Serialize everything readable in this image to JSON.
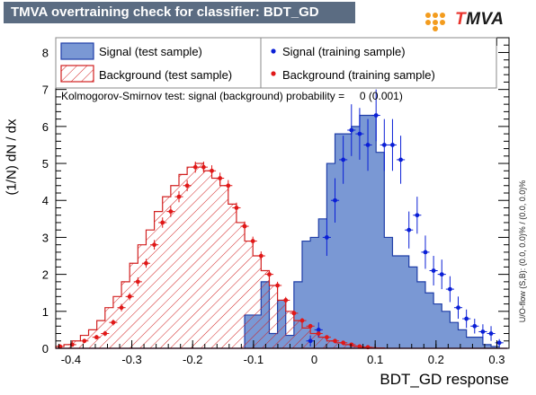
{
  "title": "TMVA overtraining check for classifier: BDT_GD",
  "logo": {
    "prefix": "T",
    "rest": "MVA",
    "accent_color": "#e8322b",
    "dot_color": "#f39c1e"
  },
  "side_note": "U/O-flow (S,B): (0.0, 0.0)% / (0.0, 0.0)%",
  "colors": {
    "signal_fill": "#7a98d4",
    "signal_line": "#1f3ea8",
    "signal_marker": "#0a1fd6",
    "background_line": "#d22020",
    "background_marker": "#e01818"
  },
  "chart_data": {
    "type": "histogram",
    "title": "TMVA overtraining check for classifier: BDT_GD",
    "xlabel": "BDT_GD response",
    "ylabel": "(1/N) dN / dx",
    "xlim": [
      -0.425,
      0.32
    ],
    "ylim": [
      0,
      8.4
    ],
    "grid": false,
    "x_ticks": [
      -0.4,
      -0.3,
      -0.2,
      -0.1,
      0,
      0.1,
      0.2,
      0.3
    ],
    "x_tick_labels": [
      "-0.4",
      "-0.3",
      "-0.2",
      "-0.1",
      "0",
      "0.1",
      "0.2",
      "0.3"
    ],
    "y_ticks": [
      0,
      1,
      2,
      3,
      4,
      5,
      6,
      7,
      8
    ],
    "y_tick_labels": [
      "0",
      "1",
      "2",
      "3",
      "4",
      "5",
      "6",
      "7",
      "8"
    ],
    "annotation": "Kolmogorov-Smirnov test: signal (background) probability =     0 (0.001)",
    "legend": {
      "placement": "top",
      "entries": [
        {
          "label": "Signal (test sample)",
          "style": "filled-box"
        },
        {
          "label": "Background (test sample)",
          "style": "hatched-box"
        },
        {
          "label": "Signal (training sample)",
          "style": "marker-signal"
        },
        {
          "label": "Background (training sample)",
          "style": "marker-background"
        }
      ]
    },
    "bin_edges": [
      -0.425,
      -0.4115,
      -0.398,
      -0.3845,
      -0.371,
      -0.3575,
      -0.344,
      -0.3305,
      -0.317,
      -0.3035,
      -0.29,
      -0.2765,
      -0.263,
      -0.2495,
      -0.236,
      -0.2225,
      -0.209,
      -0.1955,
      -0.182,
      -0.1685,
      -0.155,
      -0.1415,
      -0.128,
      -0.1145,
      -0.101,
      -0.0875,
      -0.074,
      -0.0605,
      -0.047,
      -0.0335,
      -0.02,
      -0.0065,
      0.007,
      0.0205,
      0.034,
      0.0475,
      0.061,
      0.0745,
      0.088,
      0.1015,
      0.115,
      0.1285,
      0.142,
      0.1555,
      0.169,
      0.1825,
      0.196,
      0.2095,
      0.223,
      0.2365,
      0.25,
      0.2635,
      0.277,
      0.2905,
      0.304,
      0.3175
    ],
    "series": [
      {
        "name": "Signal (test sample)",
        "values": [
          0,
          0,
          0,
          0,
          0,
          0,
          0,
          0,
          0,
          0,
          0,
          0,
          0,
          0,
          0,
          0,
          0,
          0,
          0,
          0,
          0,
          0,
          0,
          0.9,
          0.9,
          1.8,
          0.4,
          1.3,
          0.35,
          1.8,
          2.9,
          3.0,
          3.5,
          5.0,
          5.8,
          5.8,
          6.0,
          6.3,
          6.3,
          5.3,
          3.0,
          2.5,
          2.5,
          2.2,
          1.8,
          1.5,
          1.2,
          1.0,
          0.7,
          0.5,
          0.3,
          0.3,
          0.1,
          0.05,
          0.0
        ]
      },
      {
        "name": "Background (test sample)",
        "values": [
          0.05,
          0.1,
          0.2,
          0.35,
          0.5,
          0.75,
          1.1,
          1.4,
          1.8,
          2.3,
          2.8,
          3.2,
          3.7,
          4.1,
          4.4,
          4.7,
          4.9,
          5.0,
          4.8,
          4.6,
          4.4,
          3.9,
          3.4,
          2.9,
          2.5,
          2.1,
          1.7,
          1.3,
          1.0,
          0.75,
          0.55,
          0.4,
          0.3,
          0.2,
          0.15,
          0.1,
          0.06,
          0.03,
          0.02,
          0.01,
          0,
          0,
          0,
          0,
          0,
          0,
          0,
          0,
          0,
          0,
          0,
          0,
          0,
          0,
          0
        ]
      },
      {
        "name": "Signal (training sample)",
        "points": [
          {
            "x": -0.0065,
            "y": 0.2,
            "err": 0.15
          },
          {
            "x": 0.007,
            "y": 0.5,
            "err": 0.2
          },
          {
            "x": 0.0205,
            "y": 3.0,
            "err": 0.5
          },
          {
            "x": 0.034,
            "y": 4.0,
            "err": 0.6
          },
          {
            "x": 0.0475,
            "y": 5.1,
            "err": 0.65
          },
          {
            "x": 0.061,
            "y": 5.9,
            "err": 0.7
          },
          {
            "x": 0.0745,
            "y": 5.8,
            "err": 0.7
          },
          {
            "x": 0.088,
            "y": 5.5,
            "err": 0.7
          },
          {
            "x": 0.1015,
            "y": 6.3,
            "err": 0.7
          },
          {
            "x": 0.115,
            "y": 5.5,
            "err": 0.7
          },
          {
            "x": 0.1285,
            "y": 5.5,
            "err": 0.7
          },
          {
            "x": 0.142,
            "y": 5.1,
            "err": 0.65
          },
          {
            "x": 0.1555,
            "y": 3.2,
            "err": 0.5
          },
          {
            "x": 0.169,
            "y": 3.6,
            "err": 0.5
          },
          {
            "x": 0.1825,
            "y": 2.6,
            "err": 0.45
          },
          {
            "x": 0.196,
            "y": 2.1,
            "err": 0.4
          },
          {
            "x": 0.2095,
            "y": 2.0,
            "err": 0.4
          },
          {
            "x": 0.223,
            "y": 1.6,
            "err": 0.35
          },
          {
            "x": 0.2365,
            "y": 1.1,
            "err": 0.3
          },
          {
            "x": 0.25,
            "y": 0.8,
            "err": 0.25
          },
          {
            "x": 0.2635,
            "y": 0.6,
            "err": 0.2
          },
          {
            "x": 0.277,
            "y": 0.45,
            "err": 0.2
          },
          {
            "x": 0.2905,
            "y": 0.4,
            "err": 0.2
          },
          {
            "x": 0.304,
            "y": 0.15,
            "err": 0.1
          }
        ]
      },
      {
        "name": "Background (training sample)",
        "points": [
          {
            "x": -0.418,
            "y": 0.05,
            "err": 0.03
          },
          {
            "x": -0.398,
            "y": 0.1,
            "err": 0.04
          },
          {
            "x": -0.378,
            "y": 0.2,
            "err": 0.05
          },
          {
            "x": -0.358,
            "y": 0.3,
            "err": 0.06
          },
          {
            "x": -0.344,
            "y": 0.4,
            "err": 0.07
          },
          {
            "x": -0.3305,
            "y": 0.7,
            "err": 0.08
          },
          {
            "x": -0.317,
            "y": 1.1,
            "err": 0.1
          },
          {
            "x": -0.3035,
            "y": 1.4,
            "err": 0.1
          },
          {
            "x": -0.29,
            "y": 1.8,
            "err": 0.12
          },
          {
            "x": -0.2765,
            "y": 2.3,
            "err": 0.12
          },
          {
            "x": -0.263,
            "y": 2.8,
            "err": 0.13
          },
          {
            "x": -0.2495,
            "y": 3.4,
            "err": 0.14
          },
          {
            "x": -0.236,
            "y": 3.7,
            "err": 0.15
          },
          {
            "x": -0.2225,
            "y": 4.1,
            "err": 0.15
          },
          {
            "x": -0.209,
            "y": 4.4,
            "err": 0.15
          },
          {
            "x": -0.1955,
            "y": 4.9,
            "err": 0.15
          },
          {
            "x": -0.182,
            "y": 4.9,
            "err": 0.15
          },
          {
            "x": -0.1685,
            "y": 4.8,
            "err": 0.15
          },
          {
            "x": -0.155,
            "y": 4.6,
            "err": 0.15
          },
          {
            "x": -0.1415,
            "y": 4.4,
            "err": 0.15
          },
          {
            "x": -0.128,
            "y": 3.8,
            "err": 0.14
          },
          {
            "x": -0.1145,
            "y": 3.3,
            "err": 0.13
          },
          {
            "x": -0.101,
            "y": 2.9,
            "err": 0.12
          },
          {
            "x": -0.0875,
            "y": 2.5,
            "err": 0.12
          },
          {
            "x": -0.074,
            "y": 2.0,
            "err": 0.11
          },
          {
            "x": -0.0605,
            "y": 1.7,
            "err": 0.1
          },
          {
            "x": -0.047,
            "y": 1.3,
            "err": 0.09
          },
          {
            "x": -0.0335,
            "y": 0.95,
            "err": 0.08
          },
          {
            "x": -0.02,
            "y": 0.75,
            "err": 0.07
          },
          {
            "x": -0.0065,
            "y": 0.6,
            "err": 0.06
          },
          {
            "x": 0.007,
            "y": 0.4,
            "err": 0.05
          },
          {
            "x": 0.0205,
            "y": 0.3,
            "err": 0.04
          },
          {
            "x": 0.034,
            "y": 0.2,
            "err": 0.04
          },
          {
            "x": 0.0475,
            "y": 0.15,
            "err": 0.03
          },
          {
            "x": 0.061,
            "y": 0.1,
            "err": 0.03
          },
          {
            "x": 0.0745,
            "y": 0.05,
            "err": 0.02
          },
          {
            "x": 0.088,
            "y": 0.03,
            "err": 0.02
          }
        ]
      }
    ]
  }
}
